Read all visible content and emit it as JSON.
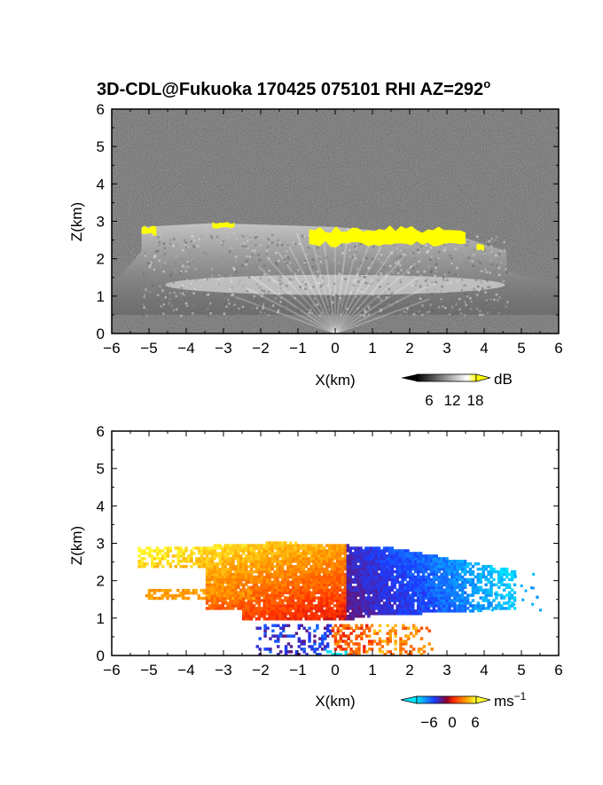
{
  "figure_title": "3D-CDL@Fukuoka 170425 075101 RHI AZ=292",
  "figure_title_suffix": "o",
  "chart_data": [
    {
      "type": "heatmap",
      "panel": "top",
      "quantity": "backscatter intensity",
      "xlabel": "X(km)",
      "ylabel": "Z(km)",
      "xlim": [
        -6,
        6
      ],
      "ylim": [
        0,
        6
      ],
      "xticks": [
        -6,
        -5,
        -4,
        -3,
        -2,
        -1,
        0,
        1,
        2,
        3,
        4,
        5,
        6
      ],
      "yticks": [
        0,
        1,
        2,
        3,
        4,
        5,
        6
      ],
      "colorbar": {
        "unit": "dB",
        "ticks": [
          6,
          12,
          18
        ],
        "colors": [
          "#000000",
          "#ffffff",
          "#ffff00"
        ],
        "extend": "both"
      },
      "features": {
        "aerosol_layer": {
          "z_bottom": 0.4,
          "z_top": 2.8,
          "x_range": [
            -5.2,
            4.6
          ]
        },
        "cloud_top_high_signal": [
          {
            "x": [
              -5.2,
              -4.8
            ],
            "z": [
              2.6,
              2.9
            ]
          },
          {
            "x": [
              -3.3,
              -2.7
            ],
            "z": [
              2.8,
              3.0
            ]
          },
          {
            "x": [
              -0.7,
              3.5
            ],
            "z": [
              2.3,
              2.9
            ]
          },
          {
            "x": [
              3.8,
              4.0
            ],
            "z": [
              2.2,
              2.4
            ]
          }
        ]
      }
    },
    {
      "type": "heatmap",
      "panel": "bottom",
      "quantity": "radial velocity",
      "xlabel": "X(km)",
      "ylabel": "Z(km)",
      "xlim": [
        -6,
        6
      ],
      "ylim": [
        0,
        6
      ],
      "xticks": [
        -6,
        -5,
        -4,
        -3,
        -2,
        -1,
        0,
        1,
        2,
        3,
        4,
        5,
        6
      ],
      "yticks": [
        0,
        1,
        2,
        3,
        4,
        5,
        6
      ],
      "colorbar": {
        "unit": "ms",
        "unit_exponent": "−1",
        "ticks": [
          "−6",
          "0",
          "6"
        ],
        "colors": [
          "#00e5ff",
          "#1c3cff",
          "#ff2a00",
          "#ffff30"
        ],
        "extend": "both"
      },
      "features": {
        "positive_region": {
          "x": [
            -5.3,
            0.3
          ],
          "z": [
            1.0,
            3.0
          ],
          "velocity_range": [
            1,
            6
          ]
        },
        "negative_region": {
          "x": [
            0.3,
            5.0
          ],
          "z": [
            1.0,
            2.9
          ],
          "velocity_range": [
            -6,
            -1
          ]
        },
        "near_surface": {
          "x": [
            -2.2,
            2.7
          ],
          "z": [
            0.0,
            0.8
          ]
        }
      }
    }
  ]
}
